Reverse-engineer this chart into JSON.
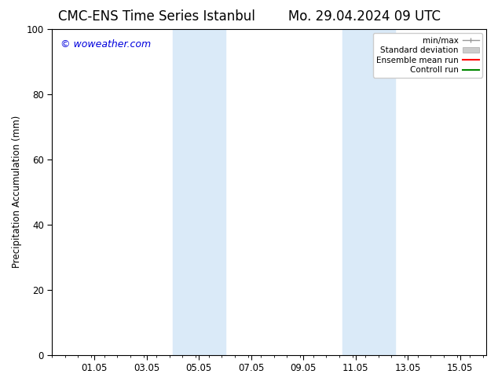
{
  "title_left": "CMC-ENS Time Series Istanbul",
  "title_right": "Mo. 29.04.2024 09 UTC",
  "ylabel": "Precipitation Accumulation (mm)",
  "watermark": "© woweather.com",
  "watermark_color": "#0000dd",
  "ylim": [
    0,
    100
  ],
  "yticks": [
    0,
    20,
    40,
    60,
    80,
    100
  ],
  "xtick_labels": [
    "01.05",
    "03.05",
    "05.05",
    "07.05",
    "09.05",
    "11.05",
    "13.05",
    "15.05"
  ],
  "x_min": 0.0,
  "x_max": 16.625,
  "xtick_positions": [
    1.625,
    3.625,
    5.625,
    7.625,
    9.625,
    11.625,
    13.625,
    15.625
  ],
  "shaded_regions": [
    {
      "start": 4.625,
      "end": 6.625
    },
    {
      "start": 11.125,
      "end": 13.125
    }
  ],
  "shaded_color": "#daeaf8",
  "background_color": "#ffffff",
  "legend_labels": [
    "min/max",
    "Standard deviation",
    "Ensemble mean run",
    "Controll run"
  ],
  "legend_colors": [
    "#999999",
    "#cccccc",
    "#ff0000",
    "#008800"
  ],
  "title_fontsize": 12,
  "tick_label_fontsize": 8.5,
  "axis_label_fontsize": 8.5,
  "watermark_fontsize": 9,
  "legend_fontsize": 7.5
}
